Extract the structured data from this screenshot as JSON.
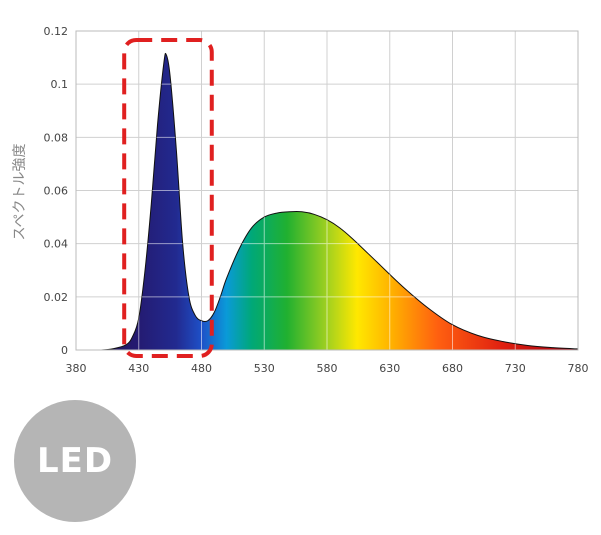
{
  "chart_data": {
    "type": "area",
    "title": "",
    "xlabel": "",
    "ylabel": "スペクトル強度",
    "xlim": [
      380,
      780
    ],
    "ylim": [
      0,
      0.12
    ],
    "x_ticks": [
      380,
      430,
      480,
      530,
      580,
      630,
      680,
      730,
      780
    ],
    "y_ticks": [
      "0",
      "0.02",
      "0.04",
      "0.06",
      "0.08",
      "0.1",
      "0.12"
    ],
    "grid": true,
    "x": [
      380,
      400,
      410,
      420,
      425,
      430,
      435,
      440,
      445,
      450,
      452,
      455,
      460,
      465,
      470,
      475,
      480,
      485,
      490,
      495,
      500,
      510,
      520,
      530,
      540,
      550,
      560,
      570,
      580,
      590,
      600,
      620,
      640,
      660,
      680,
      700,
      720,
      740,
      760,
      780
    ],
    "series": [
      {
        "values": [
          0,
          0,
          0.0005,
          0.002,
          0.005,
          0.012,
          0.03,
          0.055,
          0.085,
          0.108,
          0.111,
          0.103,
          0.075,
          0.04,
          0.02,
          0.013,
          0.011,
          0.011,
          0.014,
          0.02,
          0.027,
          0.038,
          0.046,
          0.05,
          0.0515,
          0.052,
          0.052,
          0.051,
          0.049,
          0.046,
          0.042,
          0.033,
          0.024,
          0.016,
          0.0095,
          0.0055,
          0.0032,
          0.0017,
          0.0009,
          0.0004
        ]
      }
    ],
    "highlight_box": {
      "x_range": [
        420,
        485
      ],
      "color": "#e02020",
      "style": "dashed"
    }
  },
  "badge": {
    "label": "LED",
    "color": "#b5b5b5"
  }
}
